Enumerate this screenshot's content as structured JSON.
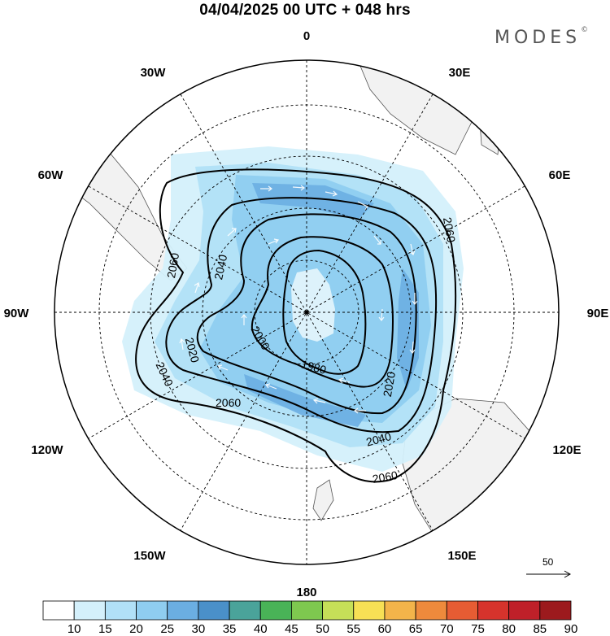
{
  "title": "04/04/2025  00 UTC  + 048 hrs",
  "brand": "MODES",
  "brand_mark": "©",
  "longitude_labels": [
    {
      "id": "lon-0",
      "text": "0"
    },
    {
      "id": "lon-30e",
      "text": "30E"
    },
    {
      "id": "lon-60e",
      "text": "60E"
    },
    {
      "id": "lon-90e",
      "text": "90E"
    },
    {
      "id": "lon-120e",
      "text": "120E"
    },
    {
      "id": "lon-150e",
      "text": "150E"
    },
    {
      "id": "lon-180",
      "text": "180"
    },
    {
      "id": "lon-150w",
      "text": "150W"
    },
    {
      "id": "lon-120w",
      "text": "120W"
    },
    {
      "id": "lon-90w",
      "text": "90W"
    },
    {
      "id": "lon-60w",
      "text": "60W"
    },
    {
      "id": "lon-30w",
      "text": "30W"
    }
  ],
  "contour_labels": [
    "2060",
    "2060",
    "2060",
    "2040",
    "2040",
    "2040",
    "2020",
    "2020",
    "2000",
    "1980",
    "2060"
  ],
  "vector_reference": "50",
  "colorbar": {
    "labels": [
      "10",
      "15",
      "20",
      "25",
      "30",
      "35",
      "40",
      "45",
      "50",
      "55",
      "60",
      "65",
      "70",
      "75",
      "80",
      "85",
      "90"
    ],
    "colors": [
      "#ffffff",
      "#d4f0fb",
      "#b1e0f7",
      "#8fcdf0",
      "#6baee2",
      "#4a90c9",
      "#4aa39a",
      "#49b357",
      "#7ec84f",
      "#c6df58",
      "#f7e055",
      "#f3b44a",
      "#ee8a3c",
      "#e65c33",
      "#d6332c",
      "#bf2029",
      "#9c1a1d"
    ]
  },
  "colors": {
    "land": "#f2f2f2",
    "wind_15": "#d4f0fb",
    "wind_20": "#b1e0f7",
    "wind_25": "#8fcdf0",
    "wind_30": "#6baee2",
    "contour": "#000000",
    "grid": "#000000"
  }
}
